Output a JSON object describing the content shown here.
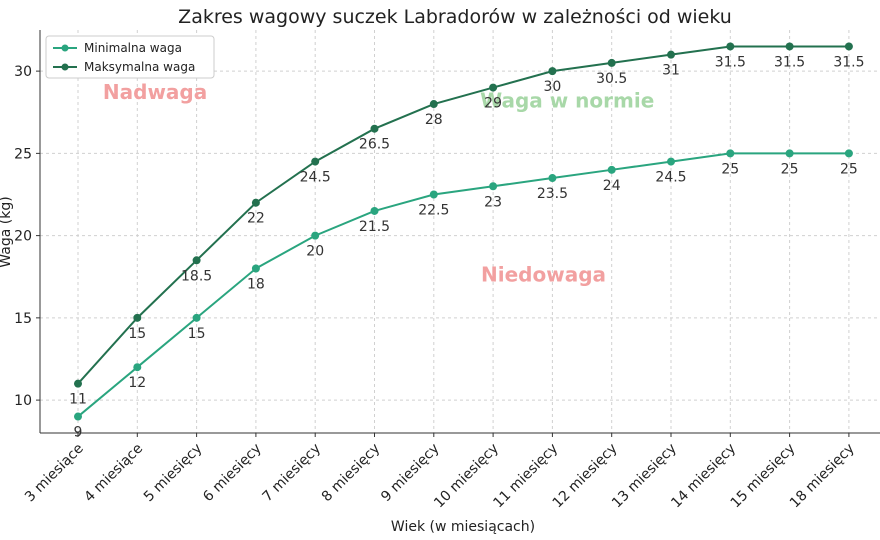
{
  "chart_data": {
    "type": "line",
    "title": "Zakres wagowy suczek Labradorów w zależności od wieku",
    "xlabel": "Wiek (w miesiącach)",
    "ylabel": "Waga (kg)",
    "ylim": [
      8,
      32.5
    ],
    "yticks": [
      10,
      15,
      20,
      25,
      30
    ],
    "grid": true,
    "legend_position": "top-left",
    "categories": [
      "3 miesiące",
      "4 miesiące",
      "5 miesięcy",
      "6 miesięcy",
      "7 miesięcy",
      "8 miesięcy",
      "9 miesięcy",
      "10 miesięcy",
      "11 miesięcy",
      "12 miesięcy",
      "13 miesięcy",
      "14 miesięcy",
      "15 miesięcy",
      "18 miesięcy"
    ],
    "series": [
      {
        "name": "Minimalna waga",
        "color": "#2aa57f",
        "values": [
          9,
          12,
          15,
          18,
          20,
          21.5,
          22.5,
          23,
          23.5,
          24,
          24.5,
          25,
          25,
          25
        ],
        "labels": [
          "9",
          "12",
          "15",
          "18",
          "20",
          "21.5",
          "22.5",
          "23",
          "23.5",
          "24",
          "24.5",
          "25",
          "25",
          "25"
        ]
      },
      {
        "name": "Maksymalna waga",
        "color": "#23714f",
        "values": [
          11,
          15,
          18.5,
          22,
          24.5,
          26.5,
          28,
          29,
          30,
          30.5,
          31,
          31.5,
          31.5,
          31.5
        ],
        "labels": [
          "11",
          "15",
          "18.5",
          "22",
          "24.5",
          "26.5",
          "28",
          "29",
          "30",
          "30.5",
          "31",
          "31.5",
          "31.5",
          "31.5"
        ]
      }
    ],
    "annotations": [
      {
        "text": "Nadwaga",
        "color": "#f2a0a0",
        "x_index": 1.3,
        "y": 28.3
      },
      {
        "text": "Waga w normie",
        "color": "#a8d8a8",
        "x_index": 8.25,
        "y": 27.8
      },
      {
        "text": "Niedowaga",
        "color": "#f2a0a0",
        "x_index": 7.85,
        "y": 17.2
      }
    ]
  }
}
